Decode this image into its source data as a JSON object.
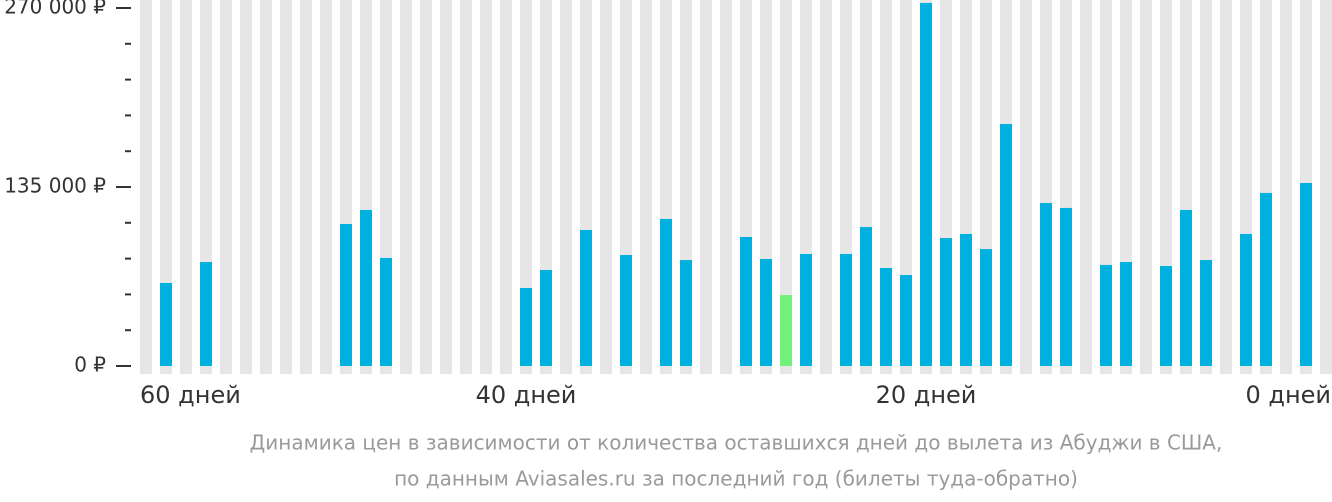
{
  "chart_data": {
    "type": "bar",
    "categories": [
      "60 дней",
      null,
      null,
      null,
      null,
      null,
      null,
      null,
      null,
      null,
      null,
      null,
      null,
      null,
      null,
      null,
      null,
      null,
      null,
      "40 дней",
      null,
      null,
      null,
      null,
      null,
      null,
      null,
      null,
      null,
      null,
      null,
      null,
      null,
      null,
      null,
      null,
      null,
      null,
      null,
      "20 дней",
      null,
      null,
      null,
      null,
      null,
      null,
      null,
      null,
      null,
      null,
      null,
      null,
      null,
      null,
      null,
      null,
      null,
      null,
      null,
      "0 дней"
    ],
    "values": [
      null,
      62600,
      null,
      78400,
      null,
      null,
      null,
      null,
      null,
      null,
      107100,
      117700,
      81500,
      null,
      null,
      null,
      null,
      null,
      null,
      58800,
      72400,
      null,
      102600,
      null,
      83700,
      null,
      110900,
      79900,
      null,
      null,
      97300,
      80700,
      53500,
      84500,
      null,
      84500,
      104800,
      73900,
      68600,
      273800,
      96500,
      99600,
      88200,
      182500,
      null,
      122900,
      119200,
      null,
      76200,
      78400,
      null,
      75400,
      117700,
      79900,
      null,
      99600,
      130500,
      null,
      138000,
      null
    ],
    "color": "#00b0de",
    "highlight_color": "#72f07c",
    "highlight_index": 32,
    "ylim": [
      0,
      270000
    ],
    "yticks": [
      {
        "value": 0,
        "label": "0 ₽"
      },
      {
        "value": 135000,
        "label": "135 000 ₽"
      },
      {
        "value": 270000,
        "label": "270 000 ₽"
      }
    ],
    "minor_yticks": [
      27000,
      54000,
      81000,
      108000,
      162000,
      189000,
      216000,
      243000
    ],
    "caption": [
      "Динамика цен в зависимости от количества оставшихся дней до вылета из Абуджи в США,",
      "по данным Aviasales.ru за последний год (билеты туда-обратно)"
    ]
  }
}
